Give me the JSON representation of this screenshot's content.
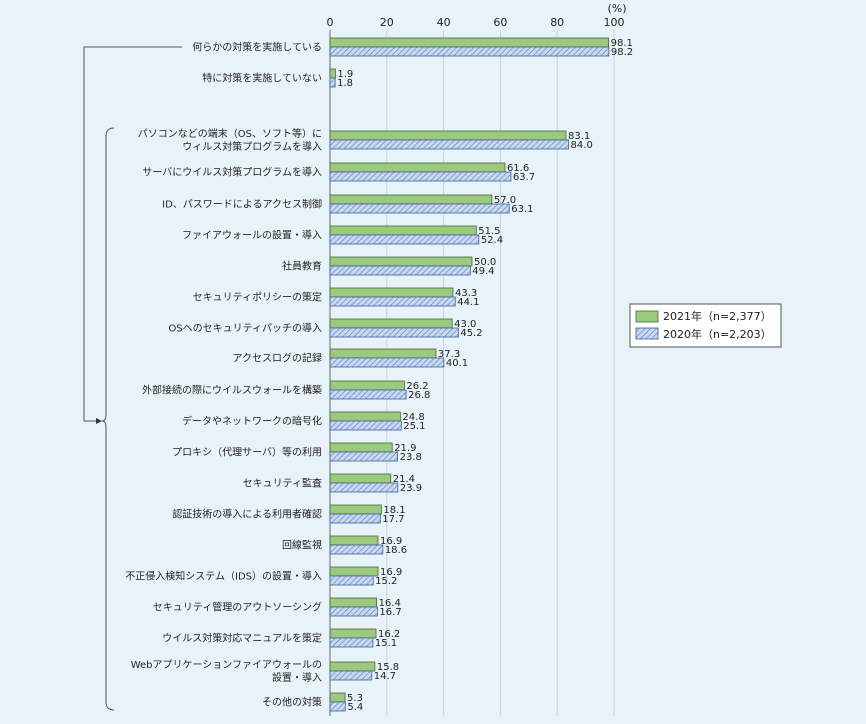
{
  "chart_data": {
    "type": "bar",
    "orientation": "horizontal",
    "unit": "(%)",
    "xlim": [
      0,
      100
    ],
    "xticks": [
      "0",
      "20",
      "40",
      "60",
      "80",
      "100"
    ],
    "grid": true,
    "legend_position": "right",
    "categories": [
      [
        "何らかの対策を実施している"
      ],
      [
        "特に対策を実施していない"
      ],
      [
        "パソコンなどの端末（OS、ソフト等）に",
        "ウィルス対策プログラムを導入"
      ],
      [
        "サーバにウイルス対策プログラムを導入"
      ],
      [
        "ID、パスワードによるアクセス制御"
      ],
      [
        "ファイアウォールの設置・導入"
      ],
      [
        "社員教育"
      ],
      [
        "セキュリティポリシーの策定"
      ],
      [
        "OSへのセキュリティパッチの導入"
      ],
      [
        "アクセスログの記録"
      ],
      [
        "外部接続の際にウイルスウォールを構築"
      ],
      [
        "データやネットワークの暗号化"
      ],
      [
        "プロキシ（代理サーバ）等の利用"
      ],
      [
        "セキュリティ監査"
      ],
      [
        "認証技術の導入による利用者確認"
      ],
      [
        "回線監視"
      ],
      [
        "不正侵入検知システム（IDS）の設置・導入"
      ],
      [
        "セキュリティ管理のアウトソーシング"
      ],
      [
        "ウイルス対策対応マニュアルを策定"
      ],
      [
        "Webアプリケーションファイアウォールの",
        "設置・導入"
      ],
      [
        "その他の対策"
      ]
    ],
    "series": [
      {
        "name": "2021年（n=2,377）",
        "color": "#9dc97f",
        "pattern": "solid",
        "values": [
          98.1,
          1.9,
          83.1,
          61.6,
          57.0,
          51.5,
          50.0,
          43.3,
          43.0,
          37.3,
          26.2,
          24.8,
          21.9,
          21.4,
          18.1,
          16.9,
          16.9,
          16.4,
          16.2,
          15.8,
          5.3
        ],
        "labels": [
          "98.1",
          "1.9",
          "83.1",
          "61.6",
          "57.0",
          "51.5",
          "50.0",
          "43.3",
          "43.0",
          "37.3",
          "26.2",
          "24.8",
          "21.9",
          "21.4",
          "18.1",
          "16.9",
          "16.9",
          "16.4",
          "16.2",
          "15.8",
          "5.3"
        ]
      },
      {
        "name": "2020年（n=2,203）",
        "color": "#9cb8e4",
        "pattern": "hatched",
        "values": [
          98.2,
          1.8,
          84.0,
          63.7,
          63.1,
          52.4,
          49.4,
          44.1,
          45.2,
          40.1,
          26.8,
          25.1,
          23.8,
          23.9,
          17.7,
          18.6,
          15.2,
          16.7,
          15.1,
          14.7,
          5.4
        ],
        "labels": [
          "98.2",
          "1.8",
          "84.0",
          "63.7",
          "63.1",
          "52.4",
          "49.4",
          "44.1",
          "45.2",
          "40.1",
          "26.8",
          "25.1",
          "23.8",
          "23.9",
          "17.7",
          "18.6",
          "15.2",
          "16.7",
          "15.1",
          "14.7",
          "5.4"
        ]
      }
    ]
  }
}
